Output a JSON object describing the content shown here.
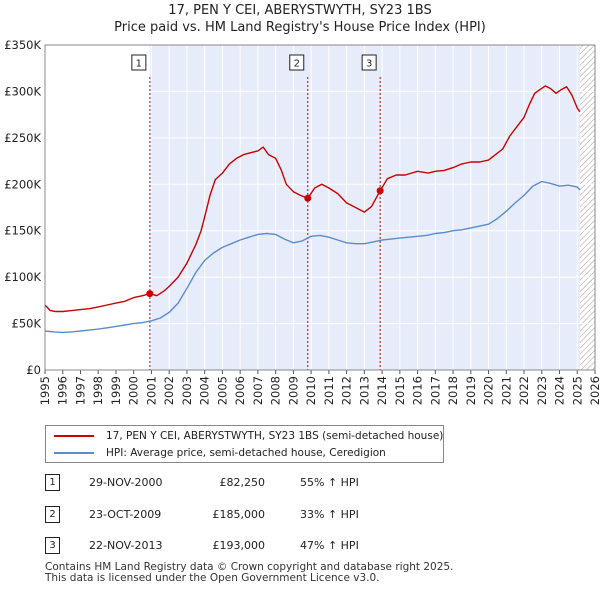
{
  "title": {
    "line1": "17, PEN Y CEI, ABERYSTWYTH, SY23 1BS",
    "line2": "Price paid vs. HM Land Registry's House Price Index (HPI)"
  },
  "colors": {
    "price_paid": "#cc0000",
    "hpi": "#5b8ccc",
    "shade": "#e6ecfa",
    "hatch": "#aaaaaa"
  },
  "chart_data": {
    "type": "line",
    "title": "Price paid vs. HM Land Registry's House Price Index (HPI)",
    "xlabel": "",
    "ylabel": "",
    "xlim": [
      1995,
      2026
    ],
    "ylim": [
      0,
      350000
    ],
    "x_ticks": [
      1995,
      1996,
      1997,
      1998,
      1999,
      2000,
      2001,
      2002,
      2003,
      2004,
      2005,
      2006,
      2007,
      2008,
      2009,
      2010,
      2011,
      2012,
      2013,
      2014,
      2015,
      2016,
      2017,
      2018,
      2019,
      2020,
      2021,
      2022,
      2023,
      2024,
      2025,
      2026
    ],
    "y_ticks": [
      {
        "value": 0,
        "label": "£0"
      },
      {
        "value": 50000,
        "label": "£50K"
      },
      {
        "value": 100000,
        "label": "£100K"
      },
      {
        "value": 150000,
        "label": "£150K"
      },
      {
        "value": 200000,
        "label": "£200K"
      },
      {
        "value": 250000,
        "label": "£250K"
      },
      {
        "value": 300000,
        "label": "£300K"
      },
      {
        "value": 350000,
        "label": "£350K"
      }
    ],
    "shaded_period": [
      2000.91,
      2025.15
    ],
    "hatched_from": 2025.15,
    "series": [
      {
        "name": "17, PEN Y CEI, ABERYSTWYTH, SY23 1BS (semi-detached house)",
        "color": "#cc0000",
        "x": [
          1995.0,
          1995.3,
          1995.6,
          1996.0,
          1996.5,
          1997.0,
          1997.5,
          1998.0,
          1998.5,
          1999.0,
          1999.5,
          2000.0,
          2000.5,
          2000.91,
          2001.3,
          2001.7,
          2002.0,
          2002.5,
          2003.0,
          2003.5,
          2003.8,
          2004.0,
          2004.3,
          2004.6,
          2005.0,
          2005.4,
          2005.8,
          2006.2,
          2006.6,
          2007.0,
          2007.3,
          2007.6,
          2008.0,
          2008.3,
          2008.6,
          2009.0,
          2009.4,
          2009.81,
          2010.2,
          2010.6,
          2011.0,
          2011.5,
          2012.0,
          2012.5,
          2013.0,
          2013.4,
          2013.89,
          2014.3,
          2014.8,
          2015.3,
          2016.0,
          2016.6,
          2017.0,
          2017.5,
          2018.0,
          2018.5,
          2019.0,
          2019.5,
          2020.0,
          2020.4,
          2020.8,
          2021.2,
          2021.6,
          2022.0,
          2022.3,
          2022.6,
          2022.9,
          2023.2,
          2023.5,
          2023.8,
          2024.1,
          2024.4,
          2024.7,
          2025.0,
          2025.15
        ],
        "y": [
          70000,
          64000,
          63000,
          63000,
          64000,
          65000,
          66000,
          68000,
          70000,
          72000,
          74000,
          78000,
          80000,
          82250,
          80000,
          85000,
          90000,
          100000,
          115000,
          135000,
          150000,
          165000,
          188000,
          205000,
          212000,
          222000,
          228000,
          232000,
          234000,
          236000,
          240000,
          232000,
          228000,
          216000,
          200000,
          192000,
          188000,
          185000,
          196000,
          200000,
          196000,
          190000,
          180000,
          175000,
          170000,
          176000,
          193000,
          206000,
          210000,
          210000,
          214000,
          212000,
          214000,
          215000,
          218000,
          222000,
          224000,
          224000,
          226000,
          232000,
          238000,
          252000,
          262000,
          272000,
          286000,
          298000,
          302000,
          306000,
          303000,
          298000,
          302000,
          305000,
          296000,
          282000,
          278000
        ]
      },
      {
        "name": "HPI: Average price, semi-detached house, Ceredigion",
        "color": "#5b8ccc",
        "x": [
          1995.0,
          1995.5,
          1996.0,
          1996.5,
          1997.0,
          1997.5,
          1998.0,
          1998.5,
          1999.0,
          1999.5,
          2000.0,
          2000.5,
          2001.0,
          2001.5,
          2002.0,
          2002.5,
          2003.0,
          2003.5,
          2004.0,
          2004.5,
          2005.0,
          2005.5,
          2006.0,
          2006.5,
          2007.0,
          2007.5,
          2008.0,
          2008.5,
          2009.0,
          2009.5,
          2010.0,
          2010.5,
          2011.0,
          2011.5,
          2012.0,
          2012.5,
          2013.0,
          2013.5,
          2014.0,
          2014.5,
          2015.0,
          2015.5,
          2016.0,
          2016.5,
          2017.0,
          2017.5,
          2018.0,
          2018.5,
          2019.0,
          2019.5,
          2020.0,
          2020.5,
          2021.0,
          2021.5,
          2022.0,
          2022.5,
          2023.0,
          2023.5,
          2024.0,
          2024.5,
          2025.0,
          2025.15
        ],
        "y": [
          42000,
          41000,
          40500,
          41000,
          42000,
          43000,
          44000,
          45500,
          47000,
          48500,
          50000,
          51000,
          53000,
          56000,
          62000,
          72000,
          88000,
          105000,
          118000,
          126000,
          132000,
          136000,
          140000,
          143000,
          146000,
          147000,
          146000,
          141000,
          137000,
          139000,
          144000,
          145000,
          143000,
          140000,
          137000,
          136000,
          136000,
          138000,
          140000,
          141000,
          142000,
          143000,
          144000,
          145000,
          147000,
          148000,
          150000,
          151000,
          153000,
          155000,
          157000,
          163000,
          171000,
          180000,
          188000,
          198000,
          203000,
          201000,
          198000,
          199000,
          197000,
          194000
        ]
      }
    ],
    "annotations": [
      {
        "label": "1",
        "x": 2000.91,
        "y": 82250
      },
      {
        "label": "2",
        "x": 2009.81,
        "y": 185000
      },
      {
        "label": "3",
        "x": 2013.89,
        "y": 193000
      }
    ]
  },
  "legend": {
    "items": [
      {
        "label": "17, PEN Y CEI, ABERYSTWYTH, SY23 1BS (semi-detached house)"
      },
      {
        "label": "HPI: Average price, semi-detached house, Ceredigion"
      }
    ]
  },
  "transactions": [
    {
      "num": "1",
      "date": "29-NOV-2000",
      "price": "£82,250",
      "hpi": "55% ↑ HPI"
    },
    {
      "num": "2",
      "date": "23-OCT-2009",
      "price": "£185,000",
      "hpi": "33% ↑ HPI"
    },
    {
      "num": "3",
      "date": "22-NOV-2013",
      "price": "£193,000",
      "hpi": "47% ↑ HPI"
    }
  ],
  "footer": {
    "line1": "Contains HM Land Registry data © Crown copyright and database right 2025.",
    "line2": "This data is licensed under the Open Government Licence v3.0."
  }
}
